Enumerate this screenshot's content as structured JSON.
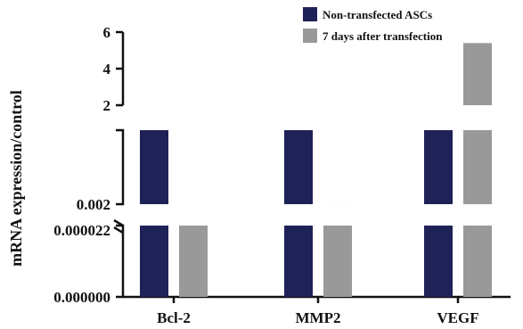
{
  "chart_data": {
    "type": "bar",
    "axis_break": true,
    "ylabel": "mRNA expression/control",
    "categories": [
      "Bcl-2",
      "MMP2",
      "VEGF"
    ],
    "series": [
      {
        "name": "Non-transfected ASCs",
        "color": "#1e2257",
        "values": [
          1,
          1,
          1
        ]
      },
      {
        "name": "7 days after transfection",
        "color": "#999999",
        "values": [
          2.2e-05,
          0.0025,
          5.4
        ]
      }
    ],
    "y_segments": [
      {
        "range": [
          0,
          2.2e-05
        ],
        "ticks": [
          "0.000000",
          "0.000022"
        ]
      },
      {
        "range": [
          0.002,
          1
        ],
        "ticks": [
          "0.002"
        ]
      },
      {
        "range": [
          2,
          6
        ],
        "ticks": [
          "2",
          "4",
          "6"
        ]
      }
    ],
    "legend_position": "top-right"
  }
}
